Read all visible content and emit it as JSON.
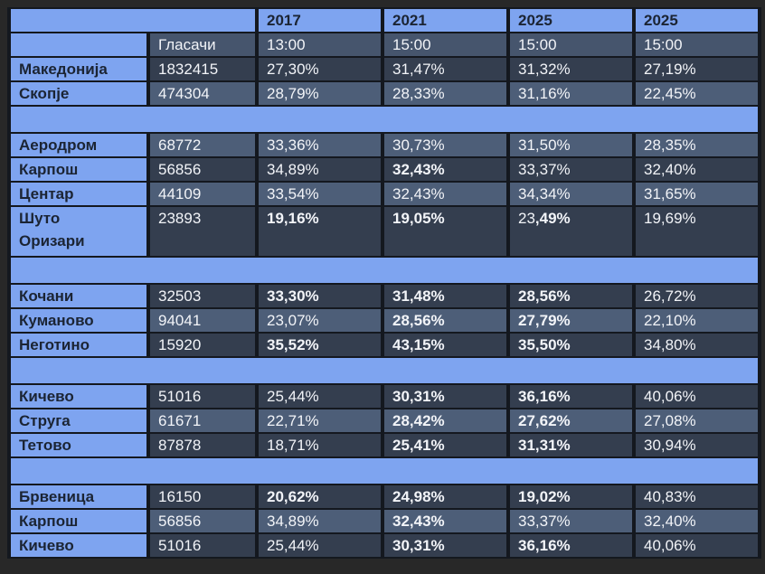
{
  "colors": {
    "background": "#282828",
    "band_blue": "#7EA4F0",
    "row_dark": "#343E4F",
    "row_medium": "#4D5E78",
    "row_subheader": "#46556D",
    "grid_line": "#14181F",
    "text_light": "#F2F4F8",
    "text_dark": "#1B2433"
  },
  "table": {
    "years": [
      "2017",
      "2021",
      "2025",
      "2025"
    ],
    "voters_header": "Гласачи",
    "times": [
      "13:00",
      "15:00",
      "15:00",
      "15:00"
    ],
    "rows": [
      {
        "type": "data",
        "label": "Македонија",
        "voters": "1832415",
        "shade": "dark",
        "wrap": false,
        "cells": [
          [
            {
              "text": "27,30%",
              "bold": false
            }
          ],
          [
            {
              "text": "31,47%",
              "bold": false
            }
          ],
          [
            {
              "text": "31,32%",
              "bold": false
            }
          ],
          [
            {
              "text": "27,19%",
              "bold": false
            }
          ]
        ]
      },
      {
        "type": "data",
        "label": "Скопје",
        "voters": "474304",
        "shade": "med",
        "wrap": false,
        "cells": [
          [
            {
              "text": "28,79%",
              "bold": false
            }
          ],
          [
            {
              "text": "28,33%",
              "bold": false
            }
          ],
          [
            {
              "text": "31,16%",
              "bold": false
            }
          ],
          [
            {
              "text": "22,45%",
              "bold": false
            }
          ]
        ]
      },
      {
        "type": "spacer"
      },
      {
        "type": "data",
        "label": "Аеродром",
        "voters": "68772",
        "shade": "med",
        "wrap": false,
        "cells": [
          [
            {
              "text": "33,36%",
              "bold": false
            }
          ],
          [
            {
              "text": "30,73%",
              "bold": false
            }
          ],
          [
            {
              "text": "31,50%",
              "bold": false
            }
          ],
          [
            {
              "text": "28,35%",
              "bold": false
            }
          ]
        ]
      },
      {
        "type": "data",
        "label": "Карпош",
        "voters": "56856",
        "shade": "dark",
        "wrap": false,
        "cells": [
          [
            {
              "text": "34,89%",
              "bold": false
            }
          ],
          [
            {
              "text": "32,43%",
              "bold": true
            }
          ],
          [
            {
              "text": "33,37%",
              "bold": false
            }
          ],
          [
            {
              "text": "32,40%",
              "bold": false
            }
          ]
        ]
      },
      {
        "type": "data",
        "label": "Центар",
        "voters": "44109",
        "shade": "med",
        "wrap": false,
        "cells": [
          [
            {
              "text": "33,54%",
              "bold": false
            }
          ],
          [
            {
              "text": "32,43%",
              "bold": false
            }
          ],
          [
            {
              "text": "34,34%",
              "bold": false
            }
          ],
          [
            {
              "text": "31,65%",
              "bold": false
            }
          ]
        ]
      },
      {
        "type": "data",
        "label": "Шуто Оризари",
        "voters": "23893",
        "shade": "dark",
        "wrap": true,
        "cells": [
          [
            {
              "text": "19,16%",
              "bold": true
            }
          ],
          [
            {
              "text": "19,05%",
              "bold": true
            }
          ],
          [
            {
              "text": "23",
              "bold": false
            },
            {
              "text": ",49%",
              "bold": true
            }
          ],
          [
            {
              "text": "19,69%",
              "bold": false
            }
          ]
        ]
      },
      {
        "type": "spacer"
      },
      {
        "type": "data",
        "label": "Кочани",
        "voters": "32503",
        "shade": "dark",
        "wrap": false,
        "cells": [
          [
            {
              "text": "33,30%",
              "bold": true
            }
          ],
          [
            {
              "text": "31,48%",
              "bold": true
            }
          ],
          [
            {
              "text": "28,56%",
              "bold": true
            }
          ],
          [
            {
              "text": "26,72%",
              "bold": false
            }
          ]
        ]
      },
      {
        "type": "data",
        "label": "Куманово",
        "voters": "94041",
        "shade": "med",
        "wrap": false,
        "cells": [
          [
            {
              "text": "23,07%",
              "bold": false
            }
          ],
          [
            {
              "text": "28,56%",
              "bold": true
            }
          ],
          [
            {
              "text": "27,79%",
              "bold": true
            }
          ],
          [
            {
              "text": "22,10%",
              "bold": false
            }
          ]
        ]
      },
      {
        "type": "data",
        "label": "Неготино",
        "voters": "15920",
        "shade": "dark",
        "wrap": false,
        "cells": [
          [
            {
              "text": "35,52%",
              "bold": true
            }
          ],
          [
            {
              "text": "43,15%",
              "bold": true
            }
          ],
          [
            {
              "text": "35,50%",
              "bold": true
            }
          ],
          [
            {
              "text": "34,80%",
              "bold": false
            }
          ]
        ]
      },
      {
        "type": "spacer"
      },
      {
        "type": "data",
        "label": "Кичево",
        "voters": "51016",
        "shade": "dark",
        "wrap": false,
        "cells": [
          [
            {
              "text": "25,44%",
              "bold": false
            }
          ],
          [
            {
              "text": "30,31%",
              "bold": true
            }
          ],
          [
            {
              "text": "36,16%",
              "bold": true
            }
          ],
          [
            {
              "text": "40,06%",
              "bold": false
            }
          ]
        ]
      },
      {
        "type": "data",
        "label": "Струга",
        "voters": "61671",
        "shade": "med",
        "wrap": false,
        "cells": [
          [
            {
              "text": "22,71%",
              "bold": false
            }
          ],
          [
            {
              "text": "28,42%",
              "bold": true
            }
          ],
          [
            {
              "text": "27,62%",
              "bold": true
            }
          ],
          [
            {
              "text": "27,08%",
              "bold": false
            }
          ]
        ]
      },
      {
        "type": "data",
        "label": "Тетово",
        "voters": "87878",
        "shade": "dark",
        "wrap": false,
        "cells": [
          [
            {
              "text": "18,71%",
              "bold": false
            }
          ],
          [
            {
              "text": "25,41%",
              "bold": true
            }
          ],
          [
            {
              "text": "31,31%",
              "bold": true
            }
          ],
          [
            {
              "text": "30,94%",
              "bold": false
            }
          ]
        ]
      },
      {
        "type": "spacer"
      },
      {
        "type": "data",
        "label": "Брвеница",
        "voters": "16150",
        "shade": "dark",
        "wrap": false,
        "cells": [
          [
            {
              "text": "20,62%",
              "bold": true
            }
          ],
          [
            {
              "text": "24,98%",
              "bold": true
            }
          ],
          [
            {
              "text": "19,02%",
              "bold": true
            }
          ],
          [
            {
              "text": "40,83%",
              "bold": false
            }
          ]
        ]
      },
      {
        "type": "data",
        "label": "Карпош",
        "voters": "56856",
        "shade": "med",
        "wrap": false,
        "cells": [
          [
            {
              "text": "34,89%",
              "bold": false
            }
          ],
          [
            {
              "text": "32,43%",
              "bold": true
            }
          ],
          [
            {
              "text": "33,37%",
              "bold": false
            }
          ],
          [
            {
              "text": "32,40%",
              "bold": false
            }
          ]
        ]
      },
      {
        "type": "data",
        "label": "Кичево",
        "voters": "51016",
        "shade": "dark",
        "wrap": false,
        "cells": [
          [
            {
              "text": "25,44%",
              "bold": false
            }
          ],
          [
            {
              "text": "30,31%",
              "bold": true
            }
          ],
          [
            {
              "text": "36,16%",
              "bold": true
            }
          ],
          [
            {
              "text": "40,06%",
              "bold": false
            }
          ]
        ]
      }
    ]
  }
}
